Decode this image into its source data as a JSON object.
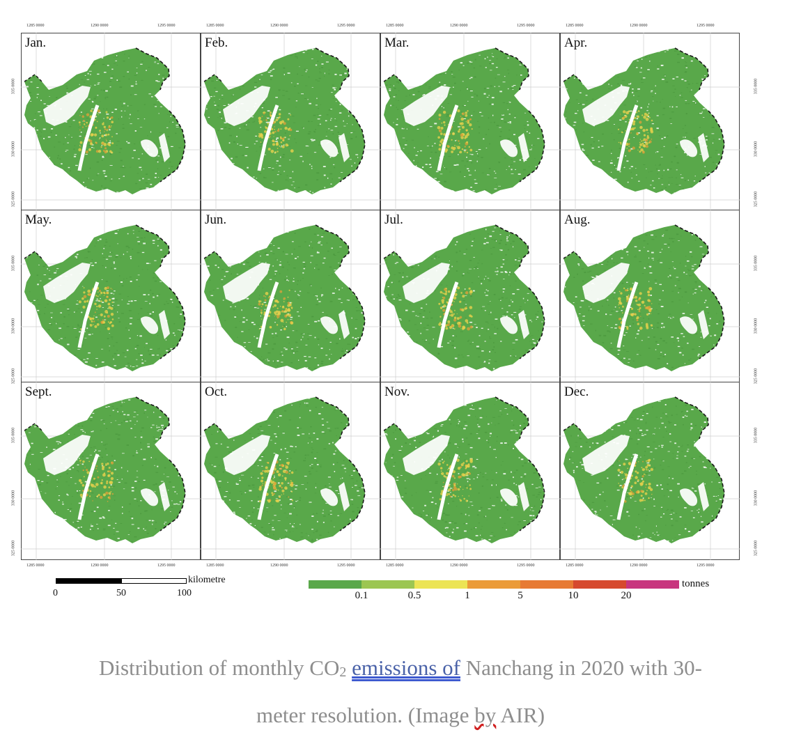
{
  "figure": {
    "months": [
      "Jan.",
      "Feb.",
      "Mar.",
      "Apr.",
      "May.",
      "Jun.",
      "Jul.",
      "Aug.",
      "Sept.",
      "Oct.",
      "Nov.",
      "Dec."
    ],
    "top_ticks": [
      "1285 0000",
      "1290 0000",
      "1295 0000"
    ],
    "side_ticks": [
      "335 0000",
      "330 0000",
      "325 0000"
    ],
    "map_colors": {
      "land": "#59a84a",
      "land_dark": "#4c9a3f",
      "water": "#ffffff",
      "hot": "#e7d14c",
      "hot2": "#d9a03a",
      "boundary": "#1a1a1a"
    }
  },
  "scalebar": {
    "labels": [
      "0",
      "50",
      "100"
    ],
    "unit": "kilometre"
  },
  "legend": {
    "colors": [
      "#5aa84a",
      "#9cc652",
      "#ece454",
      "#eb9b38",
      "#e77a33",
      "#d6492e",
      "#c8357e"
    ],
    "labels": [
      "0.1",
      "0.5",
      "1",
      "5",
      "10",
      "20"
    ],
    "unit": "tonnes"
  },
  "caption": {
    "part1": "Distribution of monthly CO",
    "subscript": "2",
    "space": " ",
    "link_text": "emissions  of",
    "part2": " Nanchang in 2020 with 30-",
    "part3": "meter resolution. (Image ",
    "wavy_text": "by",
    "part4": " AIR)"
  }
}
